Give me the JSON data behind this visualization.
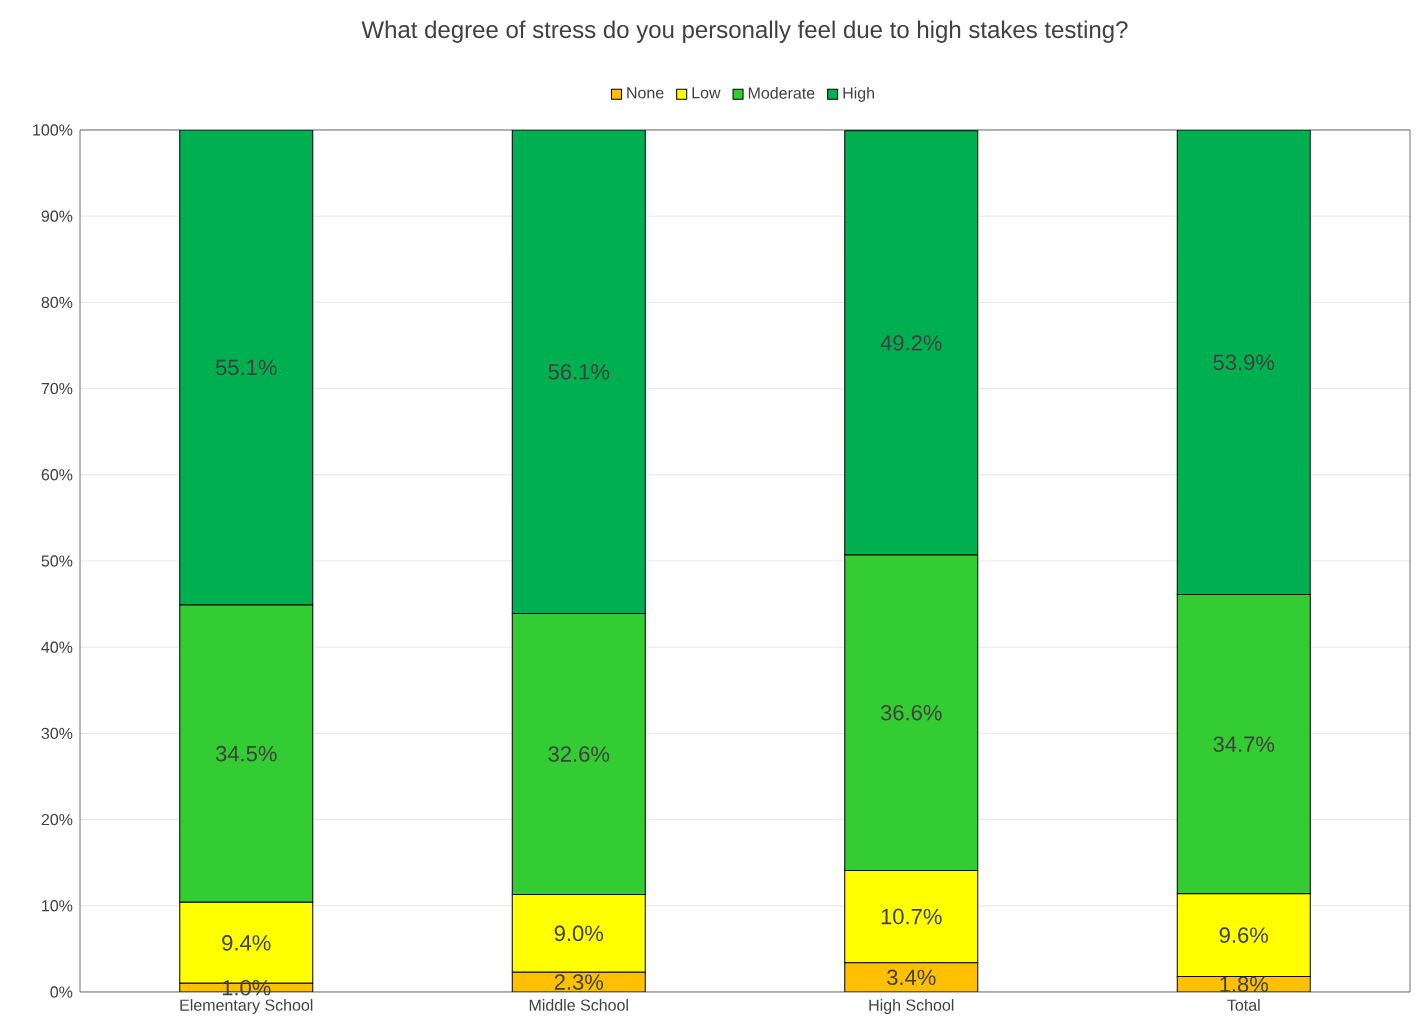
{
  "chart_data": {
    "type": "bar",
    "stacked": true,
    "title": "What degree of stress do you personally feel due to high stakes testing?",
    "categories": [
      "Elementary School",
      "Middle School",
      "High School",
      "Total"
    ],
    "series": [
      {
        "name": "None",
        "color": "#ffc000",
        "values": [
          1.0,
          2.3,
          3.4,
          1.8
        ],
        "value_labels": [
          "1.0%",
          "2.3%",
          "3.4%",
          "1.8%"
        ]
      },
      {
        "name": "Low",
        "color": "#ffff00",
        "values": [
          9.4,
          9.0,
          10.7,
          9.6
        ],
        "value_labels": [
          "9.4%",
          "9.0%",
          "10.7%",
          "9.6%"
        ]
      },
      {
        "name": "Moderate",
        "color": "#33cc33",
        "values": [
          34.5,
          32.6,
          36.6,
          34.7
        ],
        "value_labels": [
          "34.5%",
          "32.6%",
          "36.6%",
          "34.7%"
        ]
      },
      {
        "name": "High",
        "color": "#00b050",
        "values": [
          55.1,
          56.1,
          49.2,
          53.9
        ],
        "value_labels": [
          "55.1%",
          "56.1%",
          "49.2%",
          "53.9%"
        ]
      }
    ],
    "ylim": [
      0,
      100
    ],
    "yticks": [
      {
        "value": 0,
        "label": "0%"
      },
      {
        "value": 10,
        "label": "10%"
      },
      {
        "value": 20,
        "label": "20%"
      },
      {
        "value": 30,
        "label": "30%"
      },
      {
        "value": 40,
        "label": "40%"
      },
      {
        "value": 50,
        "label": "50%"
      },
      {
        "value": 60,
        "label": "60%"
      },
      {
        "value": 70,
        "label": "70%"
      },
      {
        "value": 80,
        "label": "80%"
      },
      {
        "value": 90,
        "label": "90%"
      },
      {
        "value": 100,
        "label": "100%"
      }
    ],
    "grid": "y",
    "legend": "top"
  }
}
